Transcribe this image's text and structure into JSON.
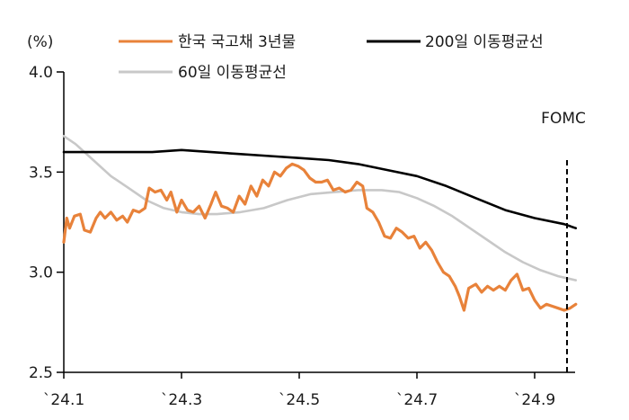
{
  "chart_data": {
    "type": "line",
    "ylabel": "(%)",
    "ylim": [
      2.5,
      4.0
    ],
    "yticks": [
      "2.5",
      "3.0",
      "3.5",
      "4.0"
    ],
    "xlim": [
      0,
      8.7
    ],
    "xticks": [
      {
        "label": "`24.1",
        "x": 0
      },
      {
        "label": "`24.3",
        "x": 2
      },
      {
        "label": "`24.5",
        "x": 4
      },
      {
        "label": "`24.7",
        "x": 6
      },
      {
        "label": "`24.9",
        "x": 8
      }
    ],
    "grid": false,
    "legend": "top",
    "annotation": {
      "label": "FOMC",
      "x": 8.55,
      "ymax": 3.56
    },
    "series": [
      {
        "name": "한국 국고채 3년물",
        "color": "#E8823A",
        "points": [
          [
            0.0,
            3.15
          ],
          [
            0.05,
            3.27
          ],
          [
            0.1,
            3.22
          ],
          [
            0.18,
            3.28
          ],
          [
            0.28,
            3.29
          ],
          [
            0.35,
            3.21
          ],
          [
            0.45,
            3.2
          ],
          [
            0.55,
            3.27
          ],
          [
            0.62,
            3.3
          ],
          [
            0.7,
            3.27
          ],
          [
            0.8,
            3.3
          ],
          [
            0.9,
            3.26
          ],
          [
            1.0,
            3.28
          ],
          [
            1.08,
            3.25
          ],
          [
            1.18,
            3.31
          ],
          [
            1.28,
            3.3
          ],
          [
            1.38,
            3.32
          ],
          [
            1.45,
            3.42
          ],
          [
            1.55,
            3.4
          ],
          [
            1.65,
            3.41
          ],
          [
            1.75,
            3.36
          ],
          [
            1.82,
            3.4
          ],
          [
            1.92,
            3.3
          ],
          [
            2.0,
            3.36
          ],
          [
            2.1,
            3.31
          ],
          [
            2.2,
            3.3
          ],
          [
            2.3,
            3.33
          ],
          [
            2.4,
            3.27
          ],
          [
            2.5,
            3.34
          ],
          [
            2.58,
            3.4
          ],
          [
            2.68,
            3.33
          ],
          [
            2.78,
            3.32
          ],
          [
            2.88,
            3.3
          ],
          [
            2.98,
            3.38
          ],
          [
            3.08,
            3.34
          ],
          [
            3.18,
            3.43
          ],
          [
            3.28,
            3.38
          ],
          [
            3.38,
            3.46
          ],
          [
            3.48,
            3.43
          ],
          [
            3.58,
            3.5
          ],
          [
            3.68,
            3.48
          ],
          [
            3.78,
            3.52
          ],
          [
            3.88,
            3.54
          ],
          [
            3.98,
            3.53
          ],
          [
            4.08,
            3.51
          ],
          [
            4.18,
            3.47
          ],
          [
            4.28,
            3.45
          ],
          [
            4.38,
            3.45
          ],
          [
            4.48,
            3.46
          ],
          [
            4.58,
            3.41
          ],
          [
            4.68,
            3.42
          ],
          [
            4.78,
            3.4
          ],
          [
            4.88,
            3.41
          ],
          [
            4.98,
            3.45
          ],
          [
            5.08,
            3.43
          ],
          [
            5.15,
            3.32
          ],
          [
            5.25,
            3.3
          ],
          [
            5.35,
            3.25
          ],
          [
            5.45,
            3.18
          ],
          [
            5.55,
            3.17
          ],
          [
            5.65,
            3.22
          ],
          [
            5.75,
            3.2
          ],
          [
            5.85,
            3.17
          ],
          [
            5.95,
            3.18
          ],
          [
            6.05,
            3.12
          ],
          [
            6.15,
            3.15
          ],
          [
            6.25,
            3.11
          ],
          [
            6.35,
            3.05
          ],
          [
            6.45,
            3.0
          ],
          [
            6.55,
            2.98
          ],
          [
            6.65,
            2.93
          ],
          [
            6.72,
            2.88
          ],
          [
            6.8,
            2.81
          ],
          [
            6.88,
            2.92
          ],
          [
            7.0,
            2.94
          ],
          [
            7.1,
            2.9
          ],
          [
            7.2,
            2.93
          ],
          [
            7.3,
            2.91
          ],
          [
            7.4,
            2.93
          ],
          [
            7.5,
            2.91
          ],
          [
            7.6,
            2.96
          ],
          [
            7.7,
            2.99
          ],
          [
            7.8,
            2.91
          ],
          [
            7.9,
            2.92
          ],
          [
            8.0,
            2.86
          ],
          [
            8.1,
            2.82
          ],
          [
            8.2,
            2.84
          ],
          [
            8.3,
            2.83
          ],
          [
            8.4,
            2.82
          ],
          [
            8.5,
            2.81
          ],
          [
            8.6,
            2.82
          ],
          [
            8.7,
            2.84
          ]
        ]
      },
      {
        "name": "200일 이동평균선",
        "color": "#000000",
        "points": [
          [
            0.0,
            3.6
          ],
          [
            0.5,
            3.6
          ],
          [
            1.0,
            3.6
          ],
          [
            1.5,
            3.6
          ],
          [
            2.0,
            3.61
          ],
          [
            2.5,
            3.6
          ],
          [
            3.0,
            3.59
          ],
          [
            3.5,
            3.58
          ],
          [
            4.0,
            3.57
          ],
          [
            4.5,
            3.56
          ],
          [
            5.0,
            3.54
          ],
          [
            5.5,
            3.51
          ],
          [
            6.0,
            3.48
          ],
          [
            6.5,
            3.43
          ],
          [
            7.0,
            3.37
          ],
          [
            7.5,
            3.31
          ],
          [
            8.0,
            3.27
          ],
          [
            8.5,
            3.24
          ],
          [
            8.7,
            3.22
          ]
        ]
      },
      {
        "name": "60일 이동평균선",
        "color": "#C8C8C8",
        "points": [
          [
            0.0,
            3.68
          ],
          [
            0.2,
            3.64
          ],
          [
            0.5,
            3.56
          ],
          [
            0.8,
            3.48
          ],
          [
            1.1,
            3.42
          ],
          [
            1.4,
            3.36
          ],
          [
            1.7,
            3.32
          ],
          [
            2.0,
            3.3
          ],
          [
            2.3,
            3.29
          ],
          [
            2.6,
            3.29
          ],
          [
            3.0,
            3.3
          ],
          [
            3.4,
            3.32
          ],
          [
            3.8,
            3.36
          ],
          [
            4.2,
            3.39
          ],
          [
            4.6,
            3.4
          ],
          [
            5.0,
            3.41
          ],
          [
            5.4,
            3.41
          ],
          [
            5.7,
            3.4
          ],
          [
            6.0,
            3.37
          ],
          [
            6.3,
            3.33
          ],
          [
            6.6,
            3.28
          ],
          [
            6.9,
            3.22
          ],
          [
            7.2,
            3.16
          ],
          [
            7.5,
            3.1
          ],
          [
            7.8,
            3.05
          ],
          [
            8.1,
            3.01
          ],
          [
            8.4,
            2.98
          ],
          [
            8.7,
            2.96
          ]
        ]
      }
    ]
  }
}
